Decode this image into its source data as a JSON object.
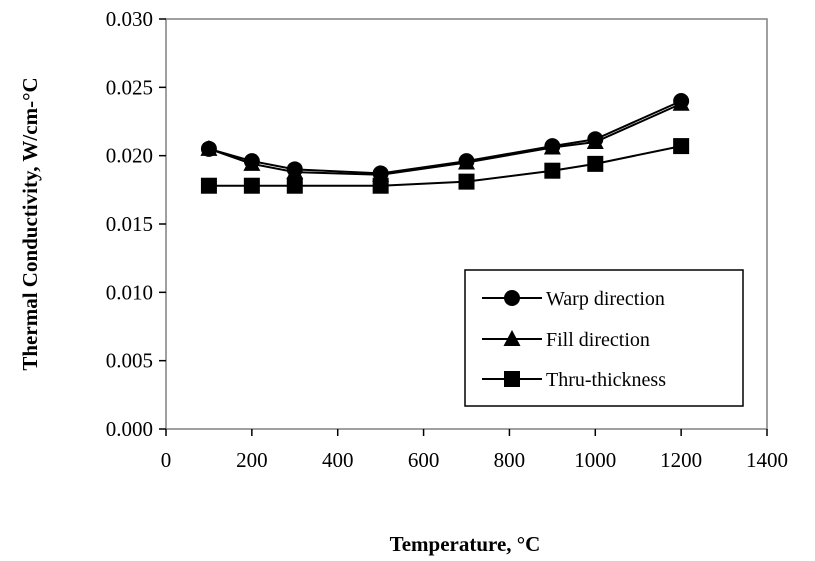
{
  "chart_data": {
    "type": "line",
    "xlabel": "Temperature, °C",
    "ylabel": "Thermal Conductivity, W/cm-°C",
    "xlim": [
      0,
      1400
    ],
    "ylim": [
      0,
      0.03
    ],
    "x_ticks": [
      "0",
      "200",
      "400",
      "600",
      "800",
      "1000",
      "1200",
      "1400"
    ],
    "y_ticks": [
      "0.000",
      "0.005",
      "0.010",
      "0.015",
      "0.020",
      "0.025",
      "0.030"
    ],
    "grid": false,
    "legend_position": "bottom-right",
    "x": [
      100,
      200,
      300,
      500,
      700,
      900,
      1000,
      1200
    ],
    "series": [
      {
        "name": "Warp direction",
        "marker": "circle",
        "values": [
          0.0205,
          0.0196,
          0.019,
          0.0187,
          0.0196,
          0.0207,
          0.0212,
          0.024
        ]
      },
      {
        "name": "Fill direction",
        "marker": "triangle",
        "values": [
          0.0205,
          0.0194,
          0.0188,
          0.0186,
          0.0195,
          0.0206,
          0.021,
          0.0238
        ]
      },
      {
        "name": "Thru-thickness",
        "marker": "square",
        "values": [
          0.0178,
          0.0178,
          0.0178,
          0.0178,
          0.0181,
          0.0189,
          0.0194,
          0.0207
        ]
      }
    ]
  }
}
